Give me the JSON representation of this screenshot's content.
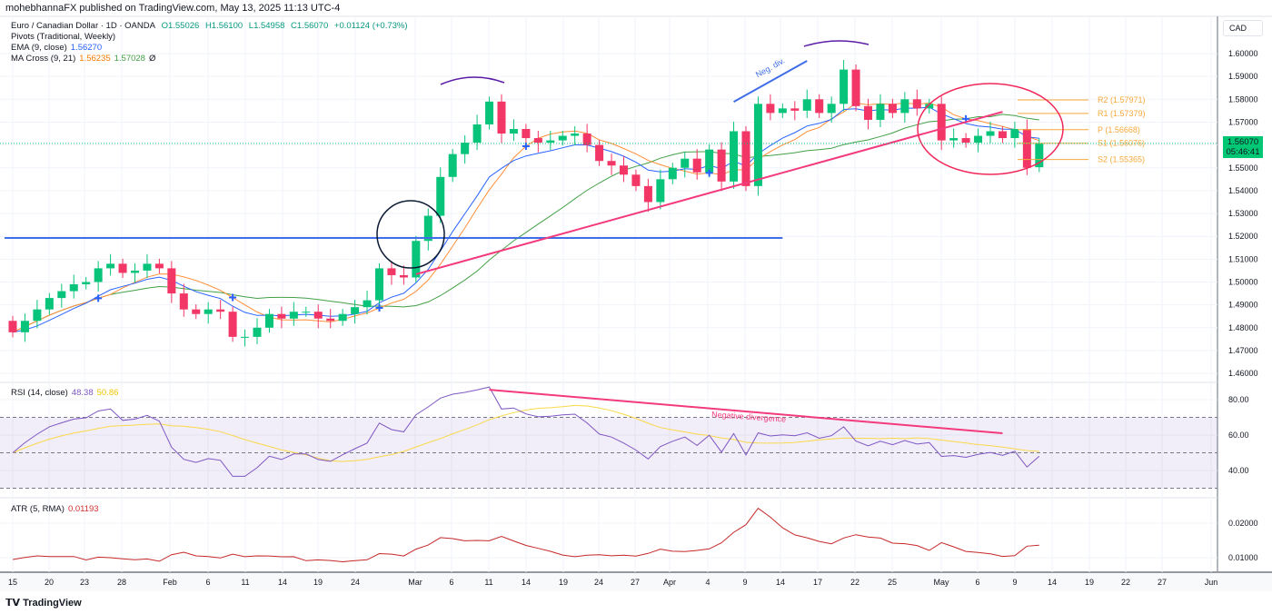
{
  "publisher_line": "mohebhannaFX published on TradingView.com, May 13, 2025 11:13 UTC-4",
  "legend": {
    "symbol": "Euro / Canadian Dollar · 1D · OANDA",
    "open": "O1.55026",
    "high": "H1.56100",
    "low": "L1.54958",
    "close": "C1.56070",
    "change": "+0.01124 (+0.73%)",
    "pivots": "Pivots (Traditional, Weekly)",
    "ema_label": "EMA (9, close)",
    "ema_value": "1.56270",
    "ma_label": "MA Cross (9, 21)",
    "ma_fast": "1.56235",
    "ma_slow": "1.57028",
    "ma_extra": "Ø",
    "rsi_label": "RSI (14, close)",
    "rsi_value": "48.38",
    "rsi_ma_value": "50.86",
    "atr_label": "ATR (5, RMA)",
    "atr_value": "0.01193"
  },
  "currency": "CAD",
  "last_price": "1.56070",
  "countdown": "05:46:41",
  "footer_logo": "TradingView",
  "colors": {
    "up": "#08c47a",
    "down": "#f23665",
    "ema": "#2962ff",
    "ma_fast": "#ff8f3a",
    "ma_slow": "#43a047",
    "rsi": "#7e57c2",
    "rsi_ma": "#f9d84a",
    "atr": "#c62828",
    "pivot": "#f7a93b",
    "trend": "#f23a7c",
    "hline": "#3f6ee8"
  },
  "chart_data": {
    "type": "candlestick",
    "symbol": "EURCAD",
    "first_open": 1.483,
    "last_open": 1.55026,
    "dates": [
      "Jan 15",
      "Jan 16",
      "Jan 17",
      "Jan 20",
      "Jan 21",
      "Jan 22",
      "Jan 23",
      "Jan 24",
      "Jan 27",
      "Jan 28",
      "Jan 29",
      "Jan 30",
      "Jan 31",
      "Feb 3",
      "Feb 4",
      "Feb 5",
      "Feb 6",
      "Feb 7",
      "Feb 10",
      "Feb 11",
      "Feb 12",
      "Feb 13",
      "Feb 14",
      "Feb 17",
      "Feb 18",
      "Feb 19",
      "Feb 20",
      "Feb 21",
      "Feb 24",
      "Feb 25",
      "Feb 26",
      "Feb 27",
      "Feb 28",
      "Mar 3",
      "Mar 4",
      "Mar 5",
      "Mar 6",
      "Mar 7",
      "Mar 10",
      "Mar 11",
      "Mar 12",
      "Mar 13",
      "Mar 14",
      "Mar 17",
      "Mar 18",
      "Mar 19",
      "Mar 20",
      "Mar 21",
      "Mar 24",
      "Mar 25",
      "Mar 26",
      "Mar 27",
      "Mar 28",
      "Mar 31",
      "Apr 1",
      "Apr 2",
      "Apr 3",
      "Apr 4",
      "Apr 7",
      "Apr 8",
      "Apr 9",
      "Apr 10",
      "Apr 11",
      "Apr 14",
      "Apr 15",
      "Apr 16",
      "Apr 17",
      "Apr 18",
      "Apr 21",
      "Apr 22",
      "Apr 23",
      "Apr 24",
      "Apr 25",
      "Apr 28",
      "Apr 29",
      "Apr 30",
      "May 1",
      "May 2",
      "May 5",
      "May 6",
      "May 7",
      "May 8",
      "May 9",
      "May 12",
      "May 13"
    ],
    "closes": [
      1.478,
      1.483,
      1.488,
      1.493,
      1.496,
      1.499,
      1.5,
      1.506,
      1.508,
      1.504,
      1.505,
      1.508,
      1.506,
      1.495,
      1.488,
      1.486,
      1.488,
      1.487,
      1.476,
      1.476,
      1.48,
      1.486,
      1.484,
      1.487,
      1.487,
      1.484,
      1.483,
      1.486,
      1.489,
      1.492,
      1.506,
      1.503,
      1.502,
      1.518,
      1.529,
      1.546,
      1.556,
      1.561,
      1.569,
      1.579,
      1.565,
      1.567,
      1.563,
      1.561,
      1.562,
      1.564,
      1.565,
      1.56,
      1.553,
      1.551,
      1.547,
      1.542,
      1.535,
      1.545,
      1.55,
      1.554,
      1.548,
      1.558,
      1.544,
      1.566,
      1.542,
      1.578,
      1.574,
      1.576,
      1.575,
      1.58,
      1.574,
      1.578,
      1.593,
      1.577,
      1.571,
      1.578,
      1.574,
      1.58,
      1.576,
      1.578,
      1.562,
      1.563,
      1.561,
      1.564,
      1.566,
      1.563,
      1.567,
      1.55,
      1.5607
    ],
    "price_ticks": [
      1.46,
      1.47,
      1.48,
      1.49,
      1.5,
      1.51,
      1.52,
      1.53,
      1.54,
      1.55,
      1.56,
      1.57,
      1.58,
      1.59,
      1.6
    ],
    "rsi_ticks": [
      "40.00",
      "60.00",
      "80.00"
    ],
    "atr_ticks": [
      "0.01000",
      "0.02000"
    ],
    "x_ticks": [
      "15",
      "20",
      "23",
      "28",
      "Feb",
      "6",
      "11",
      "14",
      "19",
      "24",
      "Mar",
      "6",
      "11",
      "14",
      "19",
      "24",
      "27",
      "Apr",
      "4",
      "9",
      "14",
      "17",
      "22",
      "25",
      "May",
      "6",
      "9",
      "14",
      "19",
      "22",
      "27",
      "Jun"
    ],
    "pivots": [
      {
        "label": "R2 (1.57971)",
        "value": 1.57971
      },
      {
        "label": "R1 (1.57379)",
        "value": 1.57379
      },
      {
        "label": "P (1.56668)",
        "value": 1.56668
      },
      {
        "label": "S1 (1.56076)",
        "value": 1.56076
      },
      {
        "label": "S2 (1.55365)",
        "value": 1.55365
      }
    ],
    "cross_markers": [
      "Jan 24",
      "Feb 10",
      "Feb 26",
      "Mar 14",
      "Apr 4",
      "May 5"
    ],
    "annotations": {
      "horizontal_line": {
        "price": 1.5193,
        "from": "Jan 15",
        "to": "Apr 14"
      },
      "trendline": {
        "from": [
          "Mar 3",
          1.5034
        ],
        "to": [
          "May 8",
          1.5745
        ]
      },
      "neg_div_line": {
        "from": [
          "Apr 8",
          1.5789
        ],
        "to": [
          "Apr 16",
          1.5968
        ],
        "text": "Neg. div."
      },
      "rsi_divergence_line": {
        "from": [
          "Mar 11",
          85.6
        ],
        "to": [
          "May 8",
          61
        ],
        "text": "Negative divergence"
      }
    }
  }
}
